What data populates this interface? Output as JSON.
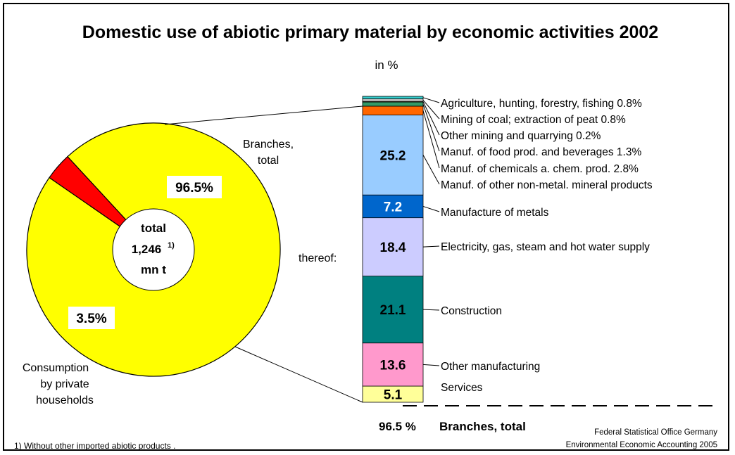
{
  "title": "Domestic use of abiotic primary material by economic activities 2002",
  "subtitle": "in %",
  "center_label": {
    "line1": "total",
    "line2": "1,246",
    "footnote_mark": "1)",
    "line3": "mn t"
  },
  "thereof_label": "thereof:",
  "footnote": "1) Without other imported abiotic products .",
  "source_line1": "Federal Statistical Office Germany",
  "source_line2": "Environmental Economic Accounting 2005",
  "branches_total_footer": {
    "value": "96.5 %",
    "label": "Branches, total"
  },
  "colors": {
    "branches": "#FFFF00",
    "households": "#FF0000",
    "agriculture": "#33CCCC",
    "coal": "#C0C0C0",
    "other_mining": "#FFFF99",
    "food": "#339966",
    "chemicals": "#FF6600",
    "non_metal": "#99CCFF",
    "metals": "#0066CC",
    "electricity": "#CCCCFF",
    "construction": "#008080",
    "other_manufacturing": "#FF99CC",
    "services": "#FFFF99"
  },
  "chart_data": [
    {
      "type": "pie",
      "categories": [
        "Branches, total",
        "Consumption by private households"
      ],
      "values": [
        96.5,
        3.5
      ],
      "data_labels": [
        "96.5%",
        "3.5%"
      ],
      "label_lines": {
        "branches": [
          "Branches,",
          "total"
        ],
        "households": [
          "Consumption",
          "by private",
          "households"
        ]
      },
      "unit": "%"
    },
    {
      "type": "bar",
      "stacked": true,
      "categories": [
        "Services",
        "Other manufacturing",
        "Construction",
        "Electricity, gas, steam and hot water supply",
        "Manufacture of metals",
        "Manuf. of other non-metal. mineral products",
        "Manuf. of chemicals a. chem. prod.",
        "Manuf. of food prod. and beverages",
        "Other mining and quarrying",
        "Mining of coal; extraction of peat",
        "Agriculture, hunting, forestry, fishing"
      ],
      "values": [
        5.1,
        13.6,
        21.1,
        18.4,
        7.2,
        25.2,
        2.8,
        1.3,
        0.2,
        0.8,
        0.8
      ],
      "color_keys": [
        "services",
        "other_manufacturing",
        "construction",
        "electricity",
        "metals",
        "non_metal",
        "chemicals",
        "food",
        "other_mining",
        "coal",
        "agriculture"
      ],
      "data_labels": [
        "5.1",
        "13.6",
        "21.1",
        "18.4",
        "7.2",
        "25.2",
        "",
        "",
        "",
        "",
        ""
      ],
      "legend_labels": [
        "Services",
        "Other manufacturing",
        "Construction",
        "Electricity, gas, steam and hot water supply",
        "Manufacture of metals",
        "Manuf. of other non-metal. mineral products",
        "Manuf. of chemicals a. chem. prod.   2.8%",
        "Manuf. of food prod. and beverages   1.3%",
        "Other mining and quarrying 0.2%",
        "Mining of coal; extraction of peat  0.8%",
        "Agriculture, hunting, forestry, fishing  0.8%"
      ],
      "total": 96.5,
      "unit": "%"
    }
  ]
}
